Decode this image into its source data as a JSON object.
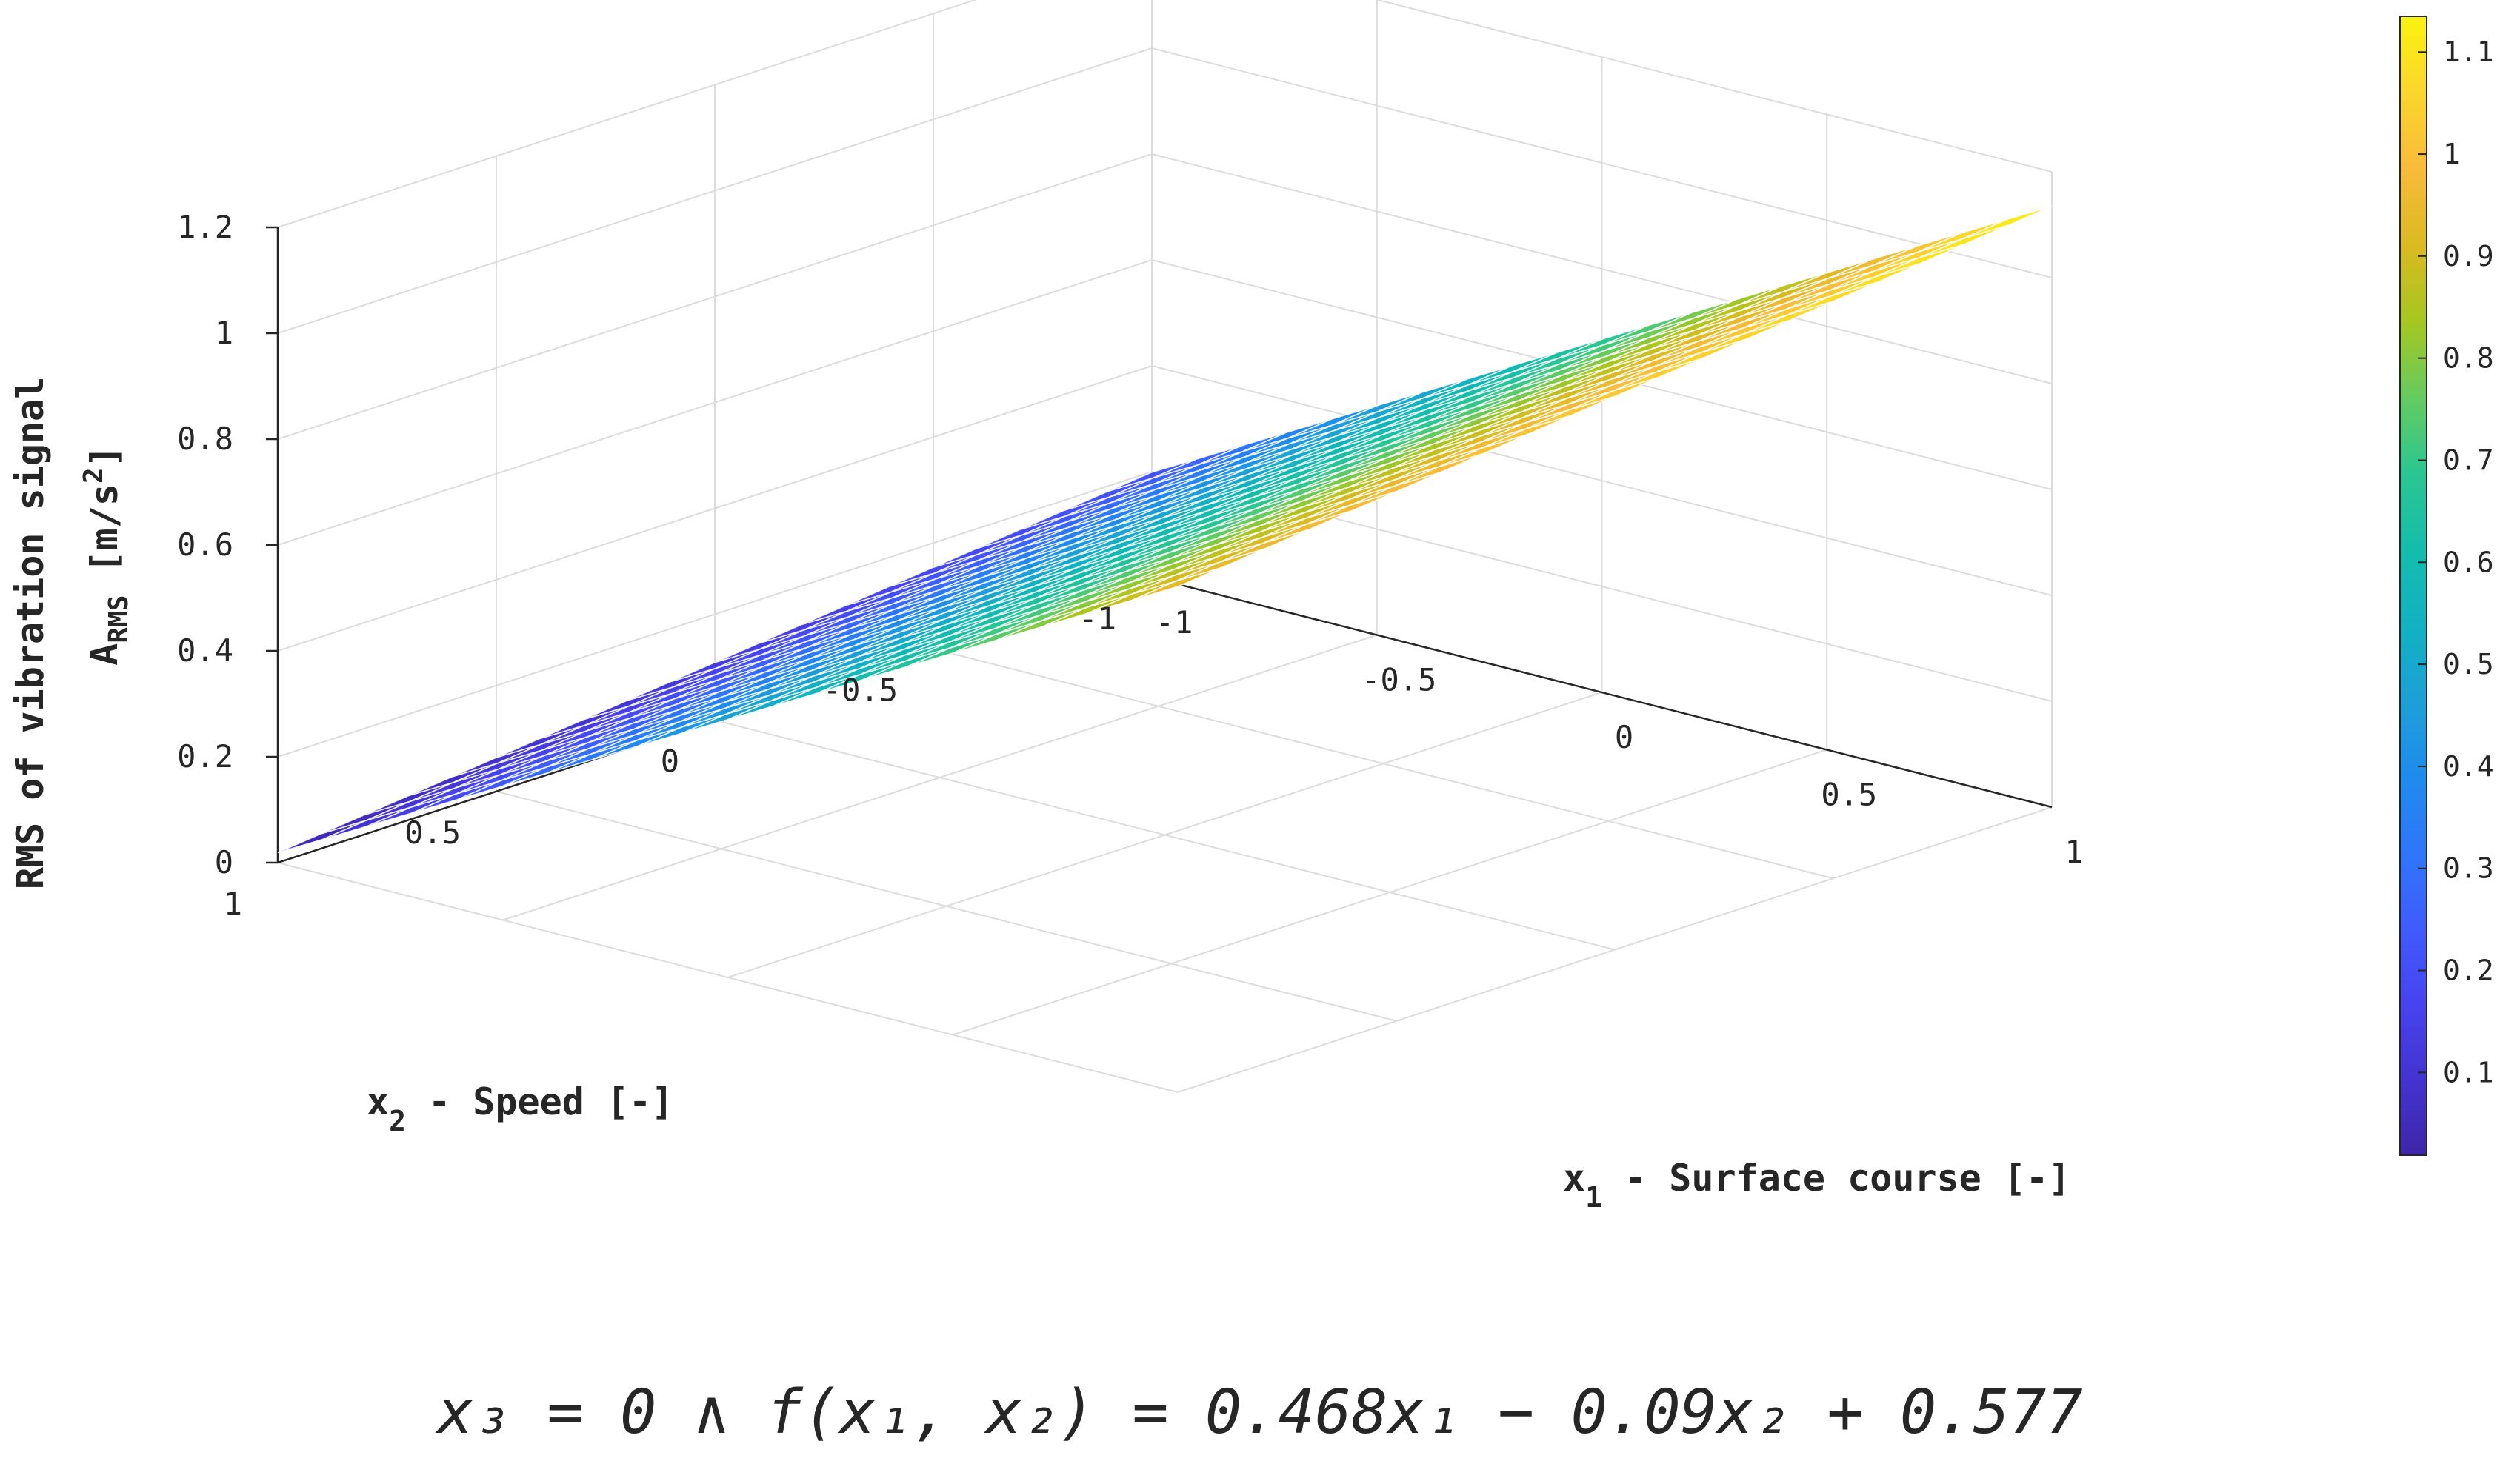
{
  "chart_data": {
    "type": "surface",
    "surface": {
      "function_coefficients": {
        "x1": 0.468,
        "x2": -0.09,
        "constant": 0.577
      },
      "x1_range": [
        -1,
        1
      ],
      "x2_range": [
        -1,
        1
      ],
      "grid": [
        21,
        21
      ]
    },
    "xlabel": {
      "main": "x",
      "sub": "1",
      "rest": " - Surface course [-]"
    },
    "ylabel": {
      "main": "x",
      "sub": "2",
      "rest": " - Speed [-]"
    },
    "zlabel": {
      "line1": "RMS of vibration signal",
      "line2_main": "A",
      "line2_sub": "RMS",
      "line2_rest": " [m/s",
      "line2_sup": "2",
      "line2_end": "]"
    },
    "xticks": [
      "-1",
      "-0.5",
      "0",
      "0.5",
      "1"
    ],
    "xtick_values": [
      -1,
      -0.5,
      0,
      0.5,
      1
    ],
    "yticks": [
      "-1",
      "-0.5",
      "0",
      "0.5",
      "1"
    ],
    "ytick_values": [
      -1,
      -0.5,
      0,
      0.5,
      1
    ],
    "zticks": [
      "0",
      "0.2",
      "0.4",
      "0.6",
      "0.8",
      "1",
      "1.2"
    ],
    "ztick_values": [
      0,
      0.2,
      0.4,
      0.6,
      0.8,
      1,
      1.2
    ],
    "xlim": [
      -1,
      1
    ],
    "ylim": [
      -1,
      1
    ],
    "zlim": [
      0,
      1.2
    ],
    "grid": true,
    "colormap": "parula",
    "colorbar": {
      "ticks": [
        "0.1",
        "0.2",
        "0.3",
        "0.4",
        "0.5",
        "0.6",
        "0.7",
        "0.8",
        "0.9",
        "1",
        "1.1"
      ],
      "tick_values": [
        0.1,
        0.2,
        0.3,
        0.4,
        0.5,
        0.6,
        0.7,
        0.8,
        0.9,
        1,
        1.1
      ],
      "range": [
        0.019,
        1.135
      ],
      "placement": "right"
    }
  },
  "caption": {
    "text": "x₃ = 0 ∧ f(x₁, x₂) = 0.468x₁ − 0.09x₂ + 0.577"
  },
  "colors": {
    "grid": "#dcdcdc",
    "axis": "#262626",
    "edge": "#ffffff",
    "parula_stops": [
      "#3e26a8",
      "#4433d0",
      "#4744ef",
      "#3f5cfc",
      "#2e77f9",
      "#1f8ced",
      "#1da0d6",
      "#11b2c1",
      "#14bdab",
      "#2bc691",
      "#66cb5e",
      "#a7c61f",
      "#dbba21",
      "#f8bb3a",
      "#fbd62c",
      "#f9f30f"
    ]
  }
}
